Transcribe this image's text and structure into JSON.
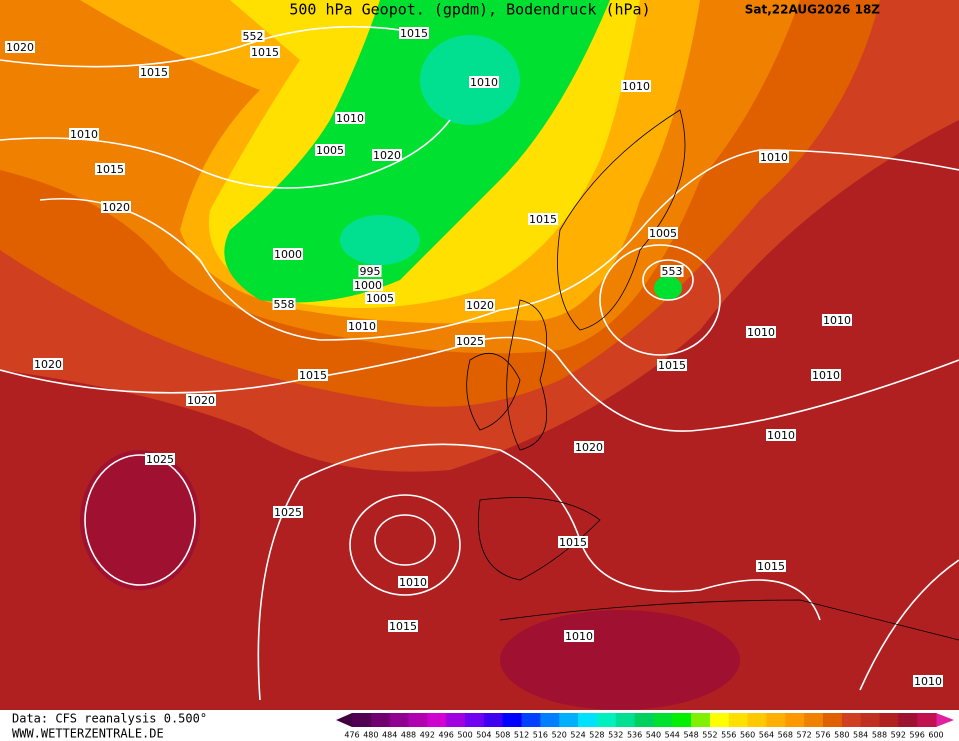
{
  "header": {
    "title": "500 hPa Geopot. (gpdm), Bodendruck (hPa)",
    "date": "Sat,22AUG2026 18Z"
  },
  "isobar_labels": [
    1020,
    552,
    1015,
    1015,
    1015,
    1010,
    1010,
    1010,
    1010,
    1005,
    1020,
    1015,
    1010,
    1020,
    1015,
    1005,
    1000,
    995,
    553,
    1000,
    1005,
    558,
    1020,
    1010,
    1010,
    1010,
    1025,
    1020,
    1015,
    1015,
    1010,
    1020,
    1010,
    1020,
    1025,
    1025,
    1015,
    1010,
    1015,
    1015,
    1010,
    1010
  ],
  "footer": {
    "source": "Data: CFS reanalysis 0.500°",
    "site": "WWW.WETTERZENTRALE.DE"
  },
  "colorbar": {
    "ticks": [
      476,
      480,
      484,
      488,
      492,
      496,
      500,
      504,
      508,
      512,
      516,
      520,
      524,
      528,
      532,
      536,
      540,
      544,
      548,
      552,
      556,
      560,
      564,
      568,
      572,
      576,
      580,
      584,
      588,
      592,
      596,
      600
    ],
    "colors": [
      "#500050",
      "#700070",
      "#900090",
      "#b000b0",
      "#d000d0",
      "#a000e0",
      "#7000f0",
      "#4000f0",
      "#0000ff",
      "#0040ff",
      "#0080ff",
      "#00b0ff",
      "#00e0ff",
      "#00f0c0",
      "#00e090",
      "#00d060",
      "#00e030",
      "#00f000",
      "#80f000",
      "#ffff00",
      "#ffe000",
      "#ffc800",
      "#ffb000",
      "#ff9800",
      "#f08000",
      "#e06000",
      "#d04020",
      "#c03020",
      "#b02020",
      "#a01030",
      "#c01050"
    ]
  }
}
